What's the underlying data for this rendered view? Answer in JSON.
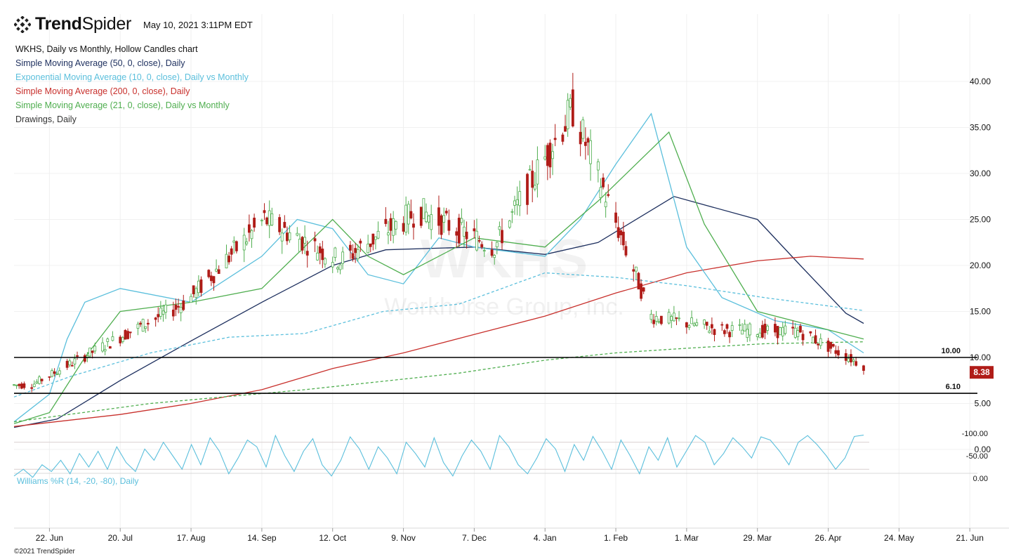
{
  "header": {
    "brand_bold": "Trend",
    "brand_light": "Spider",
    "timestamp": "May 10, 2021 3:11PM EDT"
  },
  "legend": {
    "chart_title": "WKHS, Daily vs Monthly, Hollow Candles chart",
    "indicators": [
      {
        "label": "Simple Moving Average (50, 0, close), Daily",
        "color": "#1d2f5e"
      },
      {
        "label": "Exponential Moving Average (10, 0, close), Daily vs Monthly",
        "color": "#5bbfdc"
      },
      {
        "label": "Simple Moving Average (200, 0, close), Daily",
        "color": "#c8302c"
      },
      {
        "label": "Simple Moving Average (21, 0, close), Daily vs Monthly",
        "color": "#4fae4f"
      },
      {
        "label": "Drawings, Daily",
        "color": "#333333"
      }
    ]
  },
  "watermark": {
    "ticker": "WKHS",
    "company": "Workhorse Group, Inc."
  },
  "footer": {
    "copyright": "©2021 TrendSpider"
  },
  "colors": {
    "up": "#4fae4f",
    "down": "#b01c18",
    "last_price_bg": "#b01c18"
  },
  "chart_data": {
    "type": "candlestick",
    "symbol": "WKHS",
    "y_ticks": [
      "40.00",
      "35.00",
      "30.00",
      "25.00",
      "20.00",
      "15.00",
      "10.00",
      "5.00",
      "0.00"
    ],
    "ylim": [
      0,
      43
    ],
    "x_ticks": [
      "22. Jun",
      "20. Jul",
      "17. Aug",
      "14. Sep",
      "12. Oct",
      "9. Nov",
      "7. Dec",
      "4. Jan",
      "1. Feb",
      "1. Mar",
      "29. Mar",
      "26. Apr",
      "24. May",
      "21. Jun"
    ],
    "x_range": [
      "2021-06-08",
      "2021-06-24"
    ],
    "horizontal_levels": [
      {
        "label": "10.00",
        "value": 10.0
      },
      {
        "label": "6.10",
        "value": 6.1
      }
    ],
    "last_price": {
      "label": "8.38",
      "value": 8.38
    },
    "monthly_close": [
      {
        "date": "2020-06",
        "close": 7.0
      },
      {
        "date": "2020-07",
        "close": 11.5
      },
      {
        "date": "2020-08",
        "close": 16.0
      },
      {
        "date": "2020-09",
        "close": 25.0
      },
      {
        "date": "2020-10",
        "close": 20.5
      },
      {
        "date": "2020-11",
        "close": 26.0
      },
      {
        "date": "2020-12",
        "close": 22.0
      },
      {
        "date": "2021-01",
        "close": 37.0
      },
      {
        "date": "2021-02",
        "close": 14.5
      },
      {
        "date": "2021-03",
        "close": 13.0
      },
      {
        "date": "2021-04",
        "close": 12.8
      },
      {
        "date": "2021-05",
        "close": 8.38
      }
    ],
    "series": [
      {
        "name": "Simple Moving Average (50, 0, close), Daily",
        "color": "#1d2f5e",
        "dash": false,
        "points": [
          [
            "2020-06-08",
            2.4
          ],
          [
            "2020-06-25",
            3.3
          ],
          [
            "2020-07-20",
            7.5
          ],
          [
            "2020-08-17",
            11.8
          ],
          [
            "2020-09-14",
            16.0
          ],
          [
            "2020-10-12",
            20.0
          ],
          [
            "2020-11-02",
            21.7
          ],
          [
            "2020-12-07",
            22.0
          ],
          [
            "2021-01-04",
            21.2
          ],
          [
            "2021-01-25",
            22.5
          ],
          [
            "2021-02-24",
            27.5
          ],
          [
            "2021-03-29",
            25.0
          ],
          [
            "2021-04-15",
            20.0
          ],
          [
            "2021-05-03",
            14.8
          ],
          [
            "2021-05-10",
            13.7
          ]
        ]
      },
      {
        "name": "Simple Moving Average (200, 0, close), Daily",
        "color": "#c8302c",
        "dash": false,
        "points": [
          [
            "2020-06-08",
            2.5
          ],
          [
            "2020-07-20",
            3.8
          ],
          [
            "2020-08-17",
            5.0
          ],
          [
            "2020-09-14",
            6.5
          ],
          [
            "2020-10-12",
            8.8
          ],
          [
            "2020-11-09",
            10.5
          ],
          [
            "2020-12-07",
            12.5
          ],
          [
            "2021-01-04",
            14.5
          ],
          [
            "2021-02-01",
            17.0
          ],
          [
            "2021-03-01",
            19.2
          ],
          [
            "2021-03-29",
            20.5
          ],
          [
            "2021-04-19",
            21.0
          ],
          [
            "2021-05-10",
            20.7
          ]
        ]
      },
      {
        "name": "Exponential Moving Average (10, 0, close), Daily",
        "color": "#5bbfdc",
        "dash": false,
        "points": [
          [
            "2020-06-08",
            3.0
          ],
          [
            "2020-06-22",
            6.0
          ],
          [
            "2020-06-29",
            12.0
          ],
          [
            "2020-07-06",
            16.0
          ],
          [
            "2020-07-20",
            17.5
          ],
          [
            "2020-08-17",
            16.0
          ],
          [
            "2020-09-14",
            21.0
          ],
          [
            "2020-09-28",
            25.0
          ],
          [
            "2020-10-12",
            24.0
          ],
          [
            "2020-10-26",
            19.0
          ],
          [
            "2020-11-09",
            18.0
          ],
          [
            "2020-11-23",
            23.0
          ],
          [
            "2020-12-07",
            22.0
          ],
          [
            "2021-01-04",
            21.0
          ],
          [
            "2021-01-18",
            25.0
          ],
          [
            "2021-02-01",
            31.0
          ],
          [
            "2021-02-15",
            36.5
          ],
          [
            "2021-03-01",
            22.0
          ],
          [
            "2021-03-15",
            16.5
          ],
          [
            "2021-04-05",
            14.0
          ],
          [
            "2021-04-26",
            13.0
          ],
          [
            "2021-05-10",
            10.5
          ]
        ]
      },
      {
        "name": "Simple Moving Average (21, 0, close), Daily",
        "color": "#4fae4f",
        "dash": false,
        "points": [
          [
            "2020-06-08",
            2.8
          ],
          [
            "2020-06-22",
            4.0
          ],
          [
            "2020-07-06",
            10.0
          ],
          [
            "2020-07-20",
            15.0
          ],
          [
            "2020-08-17",
            16.0
          ],
          [
            "2020-09-14",
            17.5
          ],
          [
            "2020-10-12",
            25.0
          ],
          [
            "2020-10-26",
            21.0
          ],
          [
            "2020-11-09",
            19.0
          ],
          [
            "2020-12-07",
            23.0
          ],
          [
            "2021-01-04",
            22.0
          ],
          [
            "2021-01-25",
            27.0
          ],
          [
            "2021-02-22",
            34.5
          ],
          [
            "2021-03-08",
            24.5
          ],
          [
            "2021-03-29",
            15.0
          ],
          [
            "2021-04-19",
            13.5
          ],
          [
            "2021-05-10",
            12.0
          ]
        ]
      },
      {
        "name": "Exponential Moving Average (10, 0, close), Monthly",
        "color": "#5bbfdc",
        "dash": true,
        "points": [
          [
            "2020-06-08",
            5.7
          ],
          [
            "2020-07-01",
            8.0
          ],
          [
            "2020-08-01",
            10.5
          ],
          [
            "2020-09-01",
            12.2
          ],
          [
            "2020-10-01",
            12.6
          ],
          [
            "2020-11-01",
            15.0
          ],
          [
            "2020-12-01",
            15.8
          ],
          [
            "2021-01-04",
            19.2
          ],
          [
            "2021-02-01",
            18.7
          ],
          [
            "2021-03-01",
            17.8
          ],
          [
            "2021-04-01",
            16.5
          ],
          [
            "2021-05-10",
            15.1
          ]
        ]
      },
      {
        "name": "Simple Moving Average (21, 0, close), Monthly",
        "color": "#4fae4f",
        "dash": true,
        "points": [
          [
            "2020-06-08",
            3.0
          ],
          [
            "2020-08-01",
            5.0
          ],
          [
            "2020-10-01",
            6.5
          ],
          [
            "2020-12-01",
            8.3
          ],
          [
            "2021-01-04",
            9.7
          ],
          [
            "2021-02-01",
            10.5
          ],
          [
            "2021-03-01",
            11.0
          ],
          [
            "2021-04-01",
            11.5
          ],
          [
            "2021-05-10",
            11.7
          ]
        ]
      }
    ],
    "oscillator": {
      "label": "Williams %R (14, -20, -80), Daily",
      "color": "#5bbfdc",
      "y_ticks": [
        "0.00",
        "-50.00",
        "-100.00"
      ],
      "ylim": [
        -100,
        0
      ],
      "band": [
        -80,
        -20
      ],
      "values": [
        -5,
        -20,
        -2,
        -30,
        -15,
        -40,
        -10,
        -55,
        -25,
        -60,
        -20,
        -70,
        -35,
        -15,
        -65,
        -40,
        -80,
        -50,
        -20,
        -75,
        -30,
        -90,
        -60,
        -10,
        -45,
        -85,
        -70,
        -25,
        -95,
        -50,
        -15,
        -60,
        -88,
        -30,
        -5,
        -40,
        -92,
        -65,
        -20,
        -70,
        -45,
        -10,
        -80,
        -55,
        -25,
        -90,
        -35,
        -5,
        -50,
        -85,
        -60,
        -20,
        -95,
        -70,
        -30,
        -10,
        -45,
        -88,
        -65,
        -15,
        -75,
        -40,
        -93,
        -60,
        -20,
        -85,
        -50,
        -10,
        -70,
        -40,
        -90,
        -25,
        -60,
        -95,
        -80,
        -30,
        -55,
        -90,
        -70,
        -45,
        -92,
        -85,
        -60,
        -30,
        -80,
        -95,
        -75,
        -50,
        -20,
        -45,
        -93,
        -96
      ]
    }
  }
}
